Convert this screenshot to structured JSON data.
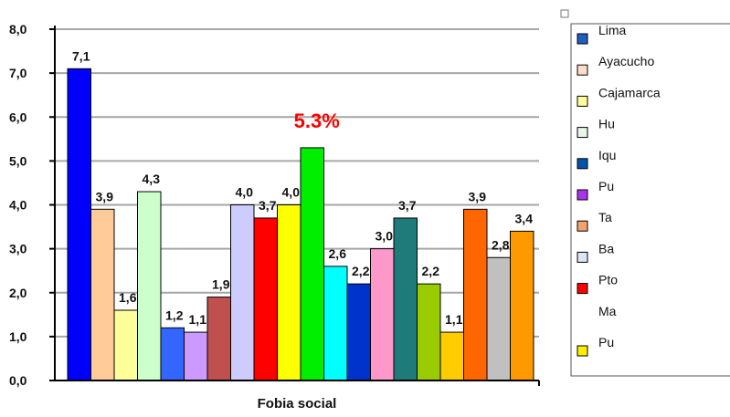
{
  "chart_data": {
    "type": "bar",
    "xlabel": "Fobia social",
    "ylabel": "",
    "ylim": [
      0,
      8
    ],
    "y_ticks": [
      "0,0",
      "1,0",
      "2,0",
      "3,0",
      "4,0",
      "5,0",
      "6,0",
      "7,0",
      "8,0"
    ],
    "grid": true,
    "annotation": "5.3%",
    "series": [
      {
        "value": 7.1,
        "label": "7,1",
        "color": "#0000ff"
      },
      {
        "value": 3.9,
        "label": "3,9",
        "color": "#ffcc99"
      },
      {
        "value": 1.6,
        "label": "1,6",
        "color": "#ffff99"
      },
      {
        "value": 4.3,
        "label": "4,3",
        "color": "#ccffcc"
      },
      {
        "value": 1.2,
        "label": "1,2",
        "color": "#3366ff"
      },
      {
        "value": 1.1,
        "label": "1,1",
        "color": "#cc99ff"
      },
      {
        "value": 1.9,
        "label": "1,9",
        "color": "#c0504d"
      },
      {
        "value": 4.0,
        "label": "4,0",
        "color": "#ccccff"
      },
      {
        "value": 3.7,
        "label": "3,7",
        "color": "#ff0000"
      },
      {
        "value": 4.0,
        "label": "4,0",
        "color": "#ffff00"
      },
      {
        "value": 5.3,
        "label": "",
        "color": "#00ee00"
      },
      {
        "value": 2.6,
        "label": "2,6",
        "color": "#00ffff"
      },
      {
        "value": 2.2,
        "label": "2,2",
        "color": "#0033cc"
      },
      {
        "value": 3.0,
        "label": "3,0",
        "color": "#ff99cc"
      },
      {
        "value": 3.7,
        "label": "3,7",
        "color": "#1f7a7a"
      },
      {
        "value": 2.2,
        "label": "2,2",
        "color": "#99cc00"
      },
      {
        "value": 1.1,
        "label": "1,1",
        "color": "#ffcc00"
      },
      {
        "value": 3.9,
        "label": "3,9",
        "color": "#ff6600"
      },
      {
        "value": 2.8,
        "label": "2,8",
        "color": "#c0c0c0"
      },
      {
        "value": 3.4,
        "label": "3,4",
        "color": "#ff9900"
      }
    ],
    "legend": [
      {
        "name": "Lima",
        "color": "#1f5fbf"
      },
      {
        "name": "Ayacucho",
        "color": "#ffdcc8"
      },
      {
        "name": "Cajamarca",
        "color": "#ffff99"
      },
      {
        "name": "Hu",
        "color": "#e6f5e6"
      },
      {
        "name": "Iqu",
        "color": "#0055aa"
      },
      {
        "name": "Pu",
        "color": "#aa33ee"
      },
      {
        "name": "Ta",
        "color": "#f4a46a"
      },
      {
        "name": "Ba",
        "color": "#dde6f5"
      },
      {
        "name": "Pto",
        "color": "#ff0000"
      },
      {
        "name": "Ma",
        "color": ""
      },
      {
        "name": "Pu",
        "color": "#ffee00"
      }
    ]
  }
}
